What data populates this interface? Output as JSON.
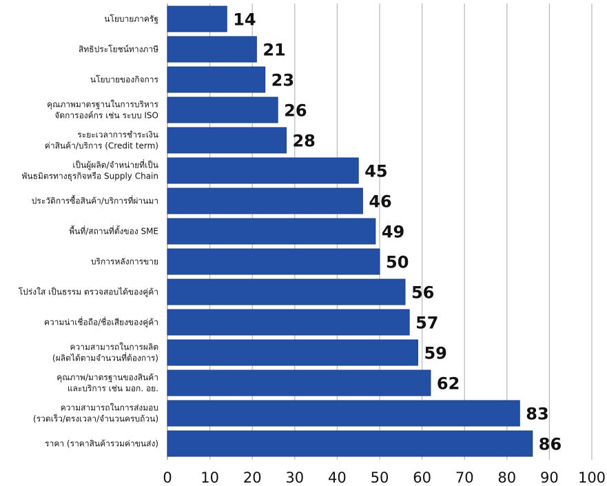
{
  "chart_data": {
    "type": "bar",
    "orientation": "horizontal",
    "categories": [
      "นโยบายภาครัฐ",
      "สิทธิประโยชน์ทางภาษี",
      "นโยบายของกิจการ",
      "คุณภาพมาตรฐานในการบริหาร\nจัดการองค์กร เช่น ระบบ ISO",
      "ระยะเวลาการชำระเงิน\nค่าสินค้า/บริการ (Credit term)",
      "เป็นผู้ผลิต/จำหน่ายที่เป็น\nพันธมิตรทางธุรกิจหรือ Supply Chain",
      "ประวัติการซื้อสินค้า/บริการที่ผ่านมา",
      "พื้นที่/สถานที่ตั้งของ SME",
      "บริการหลังการขาย",
      "โปร่งใส เป็นธรรม ตรวจสอบได้ของคู่ค้า",
      "ความน่าเชื่อถือ/ชื่อเสียงของคู่ค้า",
      "ความสามารถในการผลิต\n(ผลิตได้ตามจำนวนที่ต้องการ)",
      "คุณภาพ/มาตรฐานของสินค้า\nและบริการ เช่น มอก. อย.",
      "ความสามารถในการส่งมอบ\n(รวดเร็ว/ตรงเวลา/จำนวนครบถ้วน)",
      "ราคา (ราคาสินค้ารวมค่าขนส่ง)"
    ],
    "values": [
      14,
      21,
      23,
      26,
      28,
      45,
      46,
      49,
      50,
      56,
      57,
      59,
      62,
      83,
      86
    ],
    "xlim": [
      0,
      100
    ],
    "xticks": [
      0,
      10,
      20,
      30,
      40,
      50,
      60,
      70,
      80,
      90,
      100
    ],
    "grid": "vertical",
    "bar_color": "#2350a5",
    "bar_edge_color": "#1a3d80",
    "grid_color": "#b8b8b8"
  }
}
